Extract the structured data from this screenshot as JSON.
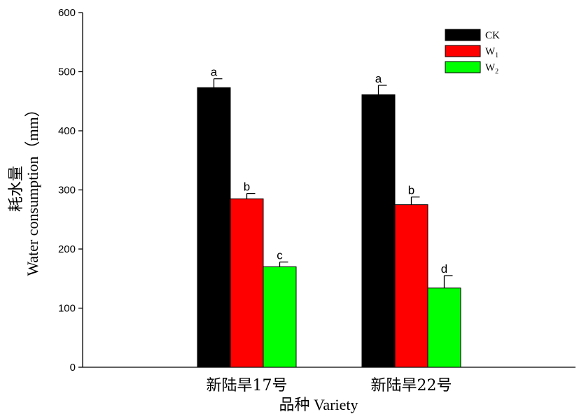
{
  "chart_data": {
    "type": "bar",
    "xlabel": "品种 Variety",
    "ylabel_cn": "耗水量",
    "ylabel_en": "Water consumption（mm）",
    "ylim": [
      0,
      600
    ],
    "yticks": [
      0,
      100,
      200,
      300,
      400,
      500,
      600
    ],
    "categories": [
      "新陆旱17号",
      "新陆旱22号"
    ],
    "series": [
      {
        "name": "CK",
        "legend_base": "CK",
        "legend_sub": "",
        "color": "#000000",
        "values": [
          473,
          461
        ],
        "errors": [
          15,
          16
        ],
        "sig": [
          "a",
          "a"
        ]
      },
      {
        "name": "W1",
        "legend_base": "W",
        "legend_sub": "1",
        "color": "#ff0000",
        "values": [
          285,
          275
        ],
        "errors": [
          9,
          13
        ],
        "sig": [
          "b",
          "b"
        ]
      },
      {
        "name": "W2",
        "legend_base": "W",
        "legend_sub": "2",
        "color": "#00ff00",
        "values": [
          170,
          134
        ],
        "errors": [
          8,
          21
        ],
        "sig": [
          "c",
          "d"
        ]
      }
    ],
    "legend_position": "top-right",
    "grid": false
  }
}
